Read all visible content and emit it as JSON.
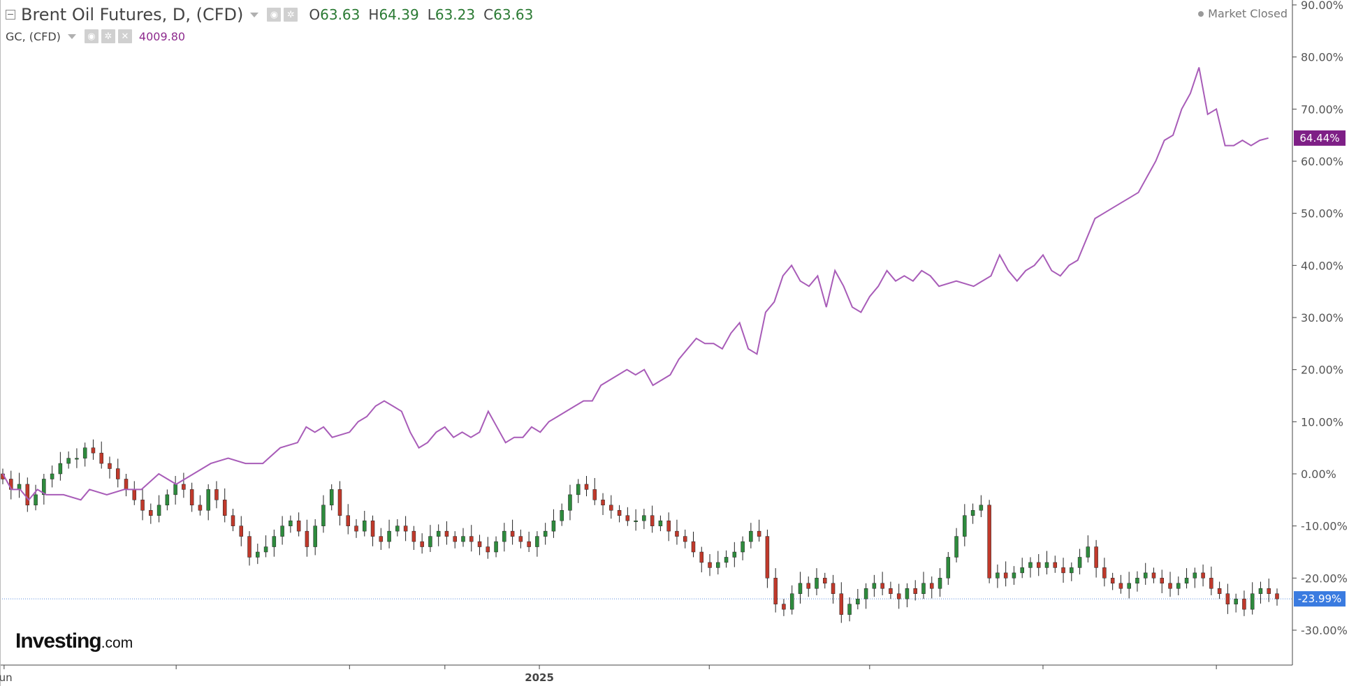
{
  "legend": {
    "primary_title": "Brent Oil Futures, D, (CFD)",
    "open_label": "O",
    "open_value": "63.63",
    "high_label": "H",
    "high_value": "64.39",
    "low_label": "L",
    "low_value": "63.23",
    "close_label": "C",
    "close_value": "63.63",
    "secondary_title": "GC, (CFD)",
    "secondary_value": "4009.80",
    "market_status": "Market Closed"
  },
  "watermark": {
    "brand": "Investing",
    "suffix": ".com"
  },
  "colors": {
    "up_candle": "#2e8b3d",
    "down_candle": "#c0392b",
    "compare_line": "#a85cb8",
    "compare_badge": "#7e1f86",
    "price_badge": "#3a7be0",
    "dotted_line": "#5b8fe0",
    "axis": "#444444",
    "text": "#555555"
  },
  "chart_data": {
    "type": "line",
    "title": "Brent Oil Futures, D, (CFD)",
    "y_axis": {
      "unit": "%",
      "position": "right",
      "ticks": [
        "90.00%",
        "80.00%",
        "70.00%",
        "60.00%",
        "50.00%",
        "40.00%",
        "30.00%",
        "20.00%",
        "10.00%",
        "0.00%",
        "-10.00%",
        "-20.00%",
        "-30.00%"
      ],
      "range": [
        -37,
        90
      ]
    },
    "x_axis": {
      "labels": [
        {
          "label": "Jun",
          "pos": 0.15
        },
        {
          "label": "2025",
          "pos": 61.9
        }
      ],
      "range": [
        0,
        147
      ]
    },
    "grid": false,
    "last_value_badges": [
      {
        "series": "GC, (CFD)",
        "label": "64.44%",
        "value": 64.44,
        "color": "#7e1f86"
      },
      {
        "series": "Brent Oil Futures, D, (CFD)",
        "label": "-23.99%",
        "value": -23.99,
        "color": "#3a7be0"
      }
    ],
    "series": [
      {
        "name": "GC, (CFD)",
        "kind": "line",
        "points": [
          [
            0,
            0
          ],
          [
            1,
            -3
          ],
          [
            2,
            -3
          ],
          [
            3,
            -5
          ],
          [
            4,
            -3
          ],
          [
            5,
            -4
          ],
          [
            7,
            -4
          ],
          [
            9,
            -5
          ],
          [
            10,
            -3
          ],
          [
            12,
            -4
          ],
          [
            14,
            -3
          ],
          [
            16,
            -3
          ],
          [
            18,
            0
          ],
          [
            20,
            -2
          ],
          [
            22,
            0
          ],
          [
            24,
            2
          ],
          [
            26,
            3
          ],
          [
            28,
            2
          ],
          [
            30,
            2
          ],
          [
            32,
            5
          ],
          [
            34,
            6
          ],
          [
            35,
            9
          ],
          [
            36,
            8
          ],
          [
            37,
            9
          ],
          [
            38,
            7
          ],
          [
            40,
            8
          ],
          [
            41,
            10
          ],
          [
            42,
            11
          ],
          [
            43,
            13
          ],
          [
            44,
            14
          ],
          [
            45,
            13
          ],
          [
            46,
            12
          ],
          [
            47,
            8
          ],
          [
            48,
            5
          ],
          [
            49,
            6
          ],
          [
            50,
            8
          ],
          [
            51,
            9
          ],
          [
            52,
            7
          ],
          [
            53,
            8
          ],
          [
            54,
            7
          ],
          [
            55,
            8
          ],
          [
            56,
            12
          ],
          [
            57,
            9
          ],
          [
            58,
            6
          ],
          [
            59,
            7
          ],
          [
            60,
            7
          ],
          [
            61,
            9
          ],
          [
            62,
            8
          ],
          [
            63,
            10
          ],
          [
            64,
            11
          ],
          [
            65,
            12
          ],
          [
            66,
            13
          ],
          [
            67,
            14
          ],
          [
            68,
            14
          ],
          [
            69,
            17
          ],
          [
            70,
            18
          ],
          [
            71,
            19
          ],
          [
            72,
            20
          ],
          [
            73,
            19
          ],
          [
            74,
            20
          ],
          [
            75,
            17
          ],
          [
            76,
            18
          ],
          [
            77,
            19
          ],
          [
            78,
            22
          ],
          [
            79,
            24
          ],
          [
            80,
            26
          ],
          [
            81,
            25
          ],
          [
            82,
            25
          ],
          [
            83,
            24
          ],
          [
            84,
            27
          ],
          [
            85,
            29
          ],
          [
            86,
            24
          ],
          [
            87,
            23
          ],
          [
            88,
            31
          ],
          [
            89,
            33
          ],
          [
            90,
            38
          ],
          [
            91,
            40
          ],
          [
            92,
            37
          ],
          [
            93,
            36
          ],
          [
            94,
            38
          ],
          [
            95,
            32
          ],
          [
            96,
            39
          ],
          [
            97,
            36
          ],
          [
            98,
            32
          ],
          [
            99,
            31
          ],
          [
            100,
            34
          ],
          [
            101,
            36
          ],
          [
            102,
            39
          ],
          [
            103,
            37
          ],
          [
            104,
            38
          ],
          [
            105,
            37
          ],
          [
            106,
            39
          ],
          [
            107,
            38
          ],
          [
            108,
            36
          ],
          [
            110,
            37
          ],
          [
            112,
            36
          ],
          [
            114,
            38
          ],
          [
            115,
            42
          ],
          [
            116,
            39
          ],
          [
            117,
            37
          ],
          [
            118,
            39
          ],
          [
            119,
            40
          ],
          [
            120,
            42
          ],
          [
            121,
            39
          ],
          [
            122,
            38
          ],
          [
            123,
            40
          ],
          [
            124,
            41
          ],
          [
            126,
            49
          ],
          [
            127,
            50
          ],
          [
            128,
            51
          ],
          [
            129,
            52
          ],
          [
            130,
            53
          ],
          [
            131,
            54
          ],
          [
            132,
            57
          ],
          [
            133,
            60
          ],
          [
            134,
            64
          ],
          [
            135,
            65
          ],
          [
            136,
            70
          ],
          [
            137,
            73
          ],
          [
            138,
            78
          ],
          [
            139,
            69
          ],
          [
            140,
            70
          ],
          [
            141,
            63
          ],
          [
            142,
            63
          ],
          [
            143,
            64
          ],
          [
            144,
            63
          ],
          [
            145,
            64
          ],
          [
            146,
            64.44
          ]
        ]
      },
      {
        "name": "Brent Oil Futures, D, (CFD)",
        "kind": "candlestick",
        "closes": [
          -1,
          -3,
          -2,
          -6,
          -4,
          -1,
          0,
          2,
          3,
          3,
          5,
          4,
          2,
          1,
          -1,
          -3,
          -5,
          -7,
          -8,
          -6,
          -4,
          -2,
          -3,
          -6,
          -7,
          -3,
          -5,
          -8,
          -10,
          -12,
          -16,
          -15,
          -14,
          -12,
          -10,
          -9,
          -11,
          -14,
          -10,
          -6,
          -3,
          -8,
          -10,
          -11,
          -9,
          -12,
          -13,
          -11,
          -10,
          -11,
          -13,
          -14,
          -12,
          -11,
          -12,
          -13,
          -12,
          -13,
          -14,
          -15,
          -13,
          -11,
          -12,
          -13,
          -14,
          -12,
          -11,
          -9,
          -7,
          -4,
          -2,
          -3,
          -5,
          -6,
          -7,
          -8,
          -9,
          -9,
          -8,
          -10,
          -9,
          -11,
          -12,
          -13,
          -15,
          -17,
          -18,
          -17,
          -16,
          -15,
          -13,
          -11,
          -12,
          -20,
          -25,
          -26,
          -23,
          -21,
          -22,
          -20,
          -21,
          -23,
          -27,
          -25,
          -24,
          -22,
          -21,
          -22,
          -23,
          -24,
          -22,
          -23,
          -21,
          -22,
          -20,
          -16,
          -12,
          -8,
          -7,
          -6,
          -20,
          -19,
          -20,
          -19,
          -18,
          -17,
          -18,
          -17,
          -18,
          -19,
          -18,
          -16,
          -14,
          -18,
          -20,
          -21,
          -22,
          -21,
          -20,
          -19,
          -20,
          -21,
          -22,
          -21,
          -20,
          -19,
          -20,
          -22,
          -23,
          -25,
          -24,
          -26,
          -23,
          -22,
          -23,
          -24
        ]
      }
    ]
  }
}
